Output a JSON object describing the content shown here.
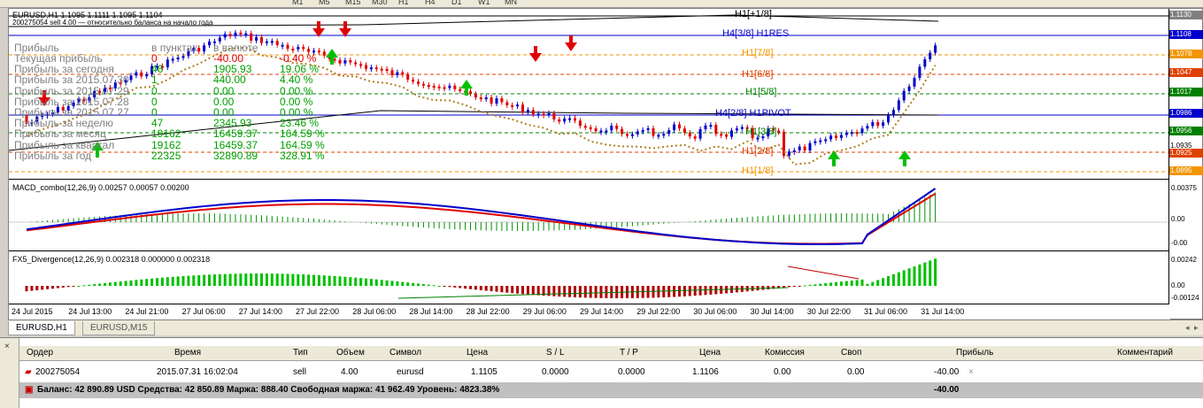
{
  "toolbar": {
    "timeframes": [
      "M1",
      "M5",
      "M15",
      "M30",
      "H1",
      "H4",
      "D1",
      "W1",
      "MN"
    ]
  },
  "chart": {
    "header": "EURUSD,H1  1.1095 1.1111 1.1095 1.1104",
    "subheader": "200275054 sell 4.00 — относительно баланса на начало года",
    "profit_table": {
      "headers": [
        "Прибыль",
        "в пунктах",
        "в валюте",
        ""
      ],
      "rows": [
        {
          "label": "Текущая прибыль",
          "points": "0",
          "currency": "-40.00",
          "percent": "-0.40 %"
        },
        {
          "label": "Прибыль за сегодня",
          "points": "46",
          "currency": "1905.93",
          "percent": "19.06 %"
        },
        {
          "label": "Прибыль за 2015.07.30",
          "points": "1",
          "currency": "440.00",
          "percent": "4.40 %"
        },
        {
          "label": "Прибыль за 2015.07.29",
          "points": "0",
          "currency": "0.00",
          "percent": "0.00 %"
        },
        {
          "label": "Прибыль за 2015.07.28",
          "points": "0",
          "currency": "0.00",
          "percent": "0.00 %"
        },
        {
          "label": "Прибыль за 2015.07.27",
          "points": "0",
          "currency": "0.00",
          "percent": "0.00 %"
        },
        {
          "label": "Прибыль за неделю",
          "points": "47",
          "currency": "2345.93",
          "percent": "23.46 %"
        },
        {
          "label": "Прибыль за месяц",
          "points": "19162",
          "currency": "16459.37",
          "percent": "164.59 %"
        },
        {
          "label": "Прибыль за квартал",
          "points": "19162",
          "currency": "16459.37",
          "percent": "164.59 %"
        },
        {
          "label": "Прибыль за год",
          "points": "22325",
          "currency": "32890.89",
          "percent": "328.91 %"
        }
      ]
    },
    "murrey_levels": [
      {
        "label": "H1[+1/8]",
        "color": "#000000"
      },
      {
        "label": "H4[3/8] H1RES",
        "color": "#0000cc"
      },
      {
        "label": "H1[7/8]",
        "color": "#f29500"
      },
      {
        "label": "H1[6/8]",
        "color": "#e04000"
      },
      {
        "label": "H1[5/8]",
        "color": "#008000"
      },
      {
        "label": "H4[2/8] H1PIVOT",
        "color": "#0000cc"
      },
      {
        "label": "H1[3/8]",
        "color": "#008000"
      },
      {
        "label": "H1[2/8]",
        "color": "#e04000"
      },
      {
        "label": "H1[1/8]",
        "color": "#f29500"
      }
    ],
    "price_scale": {
      "labels": [
        {
          "text": "1.1130",
          "bg": "#808080"
        },
        {
          "text": "1.1108",
          "bg": "#0000cc"
        },
        {
          "text": "1.1078",
          "bg": "#f29500"
        },
        {
          "text": "1.1047",
          "bg": "#e04000"
        },
        {
          "text": "1.1017",
          "bg": "#008000"
        },
        {
          "text": "1.0986",
          "bg": "#0000cc"
        },
        {
          "text": "1.0956",
          "bg": "#008000"
        },
        {
          "text": "1.0935",
          "bg": ""
        },
        {
          "text": "1.0925",
          "bg": "#e04000"
        },
        {
          "text": "1.0895",
          "bg": "#f29500"
        }
      ],
      "macd_ticks": [
        "0.00375",
        "0.00",
        "-0.00"
      ],
      "fx5_ticks": [
        "0.00242",
        "0.00",
        "-0.00124"
      ]
    },
    "macd_title": "MACD_combo(12,26,9) 0.00257 0.00057 0.00200",
    "fx5_title": "FX5_Divergence(12,26,9) 0.002318 0.000000 0.002318",
    "time_axis": [
      "24 Jul 2015",
      "24 Jul 13:00",
      "24 Jul 21:00",
      "27 Jul 06:00",
      "27 Jul 14:00",
      "27 Jul 22:00",
      "28 Jul 06:00",
      "28 Jul 14:00",
      "28 Jul 22:00",
      "29 Jul 06:00",
      "29 Jul 14:00",
      "29 Jul 22:00",
      "30 Jul 06:00",
      "30 Jul 14:00",
      "30 Jul 22:00",
      "31 Jul 06:00",
      "31 Jul 14:00"
    ]
  },
  "tabs": {
    "items": [
      "EURUSD,H1",
      "EURUSD,M15"
    ]
  },
  "terminal": {
    "columns": [
      "Ордер",
      "Время",
      "Тип",
      "Объем",
      "Символ",
      "Цена",
      "S / L",
      "T / P",
      "Цена",
      "Комиссия",
      "Своп",
      "Прибыль",
      "Комментарий"
    ],
    "row": {
      "order": "200275054",
      "time": "2015.07.31 16:02:04",
      "type": "sell",
      "volume": "4.00",
      "symbol": "eurusd",
      "price": "1.1105",
      "sl": "0.0000",
      "tp": "0.0000",
      "current": "1.1106",
      "commission": "0.00",
      "swap": "0.00",
      "profit": "-40.00"
    },
    "balance_line": "Баланс: 42 890.89 USD  Средства: 42 850.89  Маржа: 888.40  Свободная маржа: 41 962.49  Уровень: 4823.38%",
    "balance_profit": "-40.00"
  }
}
